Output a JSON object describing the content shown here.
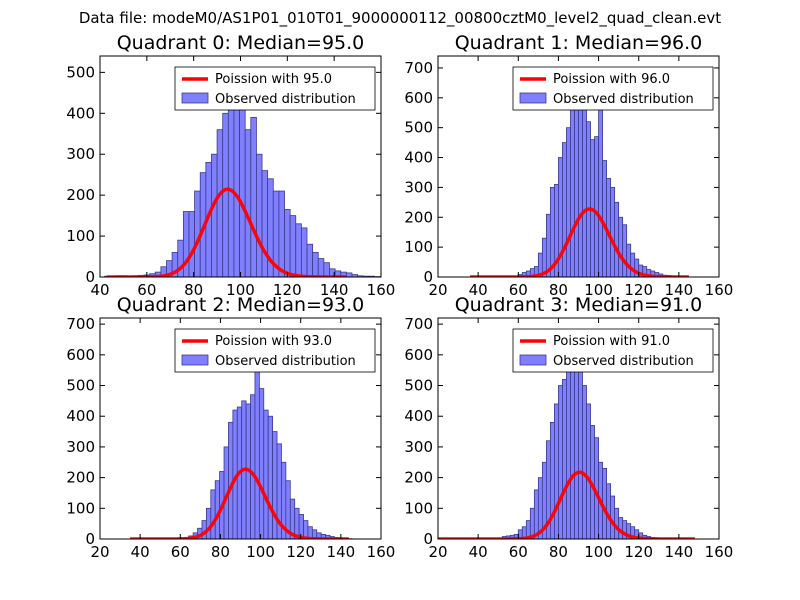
{
  "figure_title": "Data file: modeM0/AS1P01_010T01_9000000112_00800cztM0_level2_quad_clean.evt",
  "colors": {
    "bar_fill": "#8080ff",
    "bar_edge": "#3a3a8c",
    "curve": "#ff0000"
  },
  "chart_data": [
    {
      "type": "bar",
      "title": "Quadrant 0: Median=95.0",
      "legend": {
        "position": "top-right",
        "curve_label": "Poission with 95.0",
        "bars_label": "Observed distribution"
      },
      "xlim": [
        40,
        160
      ],
      "ylim": [
        0,
        540
      ],
      "xticks": [
        40,
        60,
        80,
        100,
        120,
        140,
        160
      ],
      "yticks": [
        0,
        100,
        200,
        300,
        400,
        500
      ],
      "bins": {
        "start": 42,
        "width": 2.4,
        "counts": [
          2,
          2,
          3,
          3,
          2,
          3,
          4,
          5,
          8,
          12,
          25,
          40,
          60,
          90,
          160,
          160,
          210,
          255,
          280,
          300,
          360,
          400,
          410,
          420,
          465,
          360,
          390,
          300,
          260,
          240,
          210,
          210,
          165,
          150,
          130,
          120,
          80,
          60,
          45,
          35,
          20,
          15,
          12,
          10,
          6,
          3,
          2,
          2,
          1,
          1
        ]
      },
      "poisson": {
        "mean": 95.0,
        "scale": 5240,
        "x_range": [
          43,
          145
        ]
      }
    },
    {
      "type": "bar",
      "title": "Quadrant 1: Median=96.0",
      "legend": {
        "position": "top-right",
        "curve_label": "Poission with 96.0",
        "bars_label": "Observed distribution"
      },
      "xlim": [
        20,
        160
      ],
      "ylim": [
        0,
        740
      ],
      "xticks": [
        20,
        40,
        60,
        80,
        100,
        120,
        140,
        160
      ],
      "yticks": [
        0,
        100,
        200,
        300,
        400,
        500,
        600,
        700
      ],
      "bins": {
        "start": 60,
        "width": 2.0,
        "counts": [
          8,
          15,
          20,
          28,
          35,
          80,
          130,
          210,
          300,
          310,
          400,
          450,
          500,
          570,
          600,
          680,
          640,
          520,
          460,
          470,
          600,
          390,
          330,
          300,
          250,
          200,
          175,
          110,
          80,
          60,
          40,
          35,
          25,
          20,
          15,
          10,
          6,
          5,
          3,
          2,
          1,
          1
        ]
      },
      "poisson": {
        "mean": 96.0,
        "scale": 5600,
        "x_range": [
          36,
          145
        ]
      }
    },
    {
      "type": "bar",
      "title": "Quadrant 2: Median=93.0",
      "legend": {
        "position": "top-right",
        "curve_label": "Poission with 93.0",
        "bars_label": "Observed distribution"
      },
      "xlim": [
        20,
        160
      ],
      "ylim": [
        0,
        720
      ],
      "xticks": [
        20,
        40,
        60,
        80,
        100,
        120,
        140,
        160
      ],
      "yticks": [
        0,
        100,
        200,
        300,
        400,
        500,
        600,
        700
      ],
      "bins": {
        "start": 62,
        "width": 2.2,
        "counts": [
          5,
          10,
          20,
          35,
          60,
          100,
          160,
          190,
          220,
          300,
          380,
          420,
          430,
          450,
          440,
          470,
          590,
          490,
          420,
          400,
          350,
          310,
          250,
          190,
          130,
          100,
          80,
          60,
          40,
          30,
          20,
          15,
          12,
          8,
          5,
          3,
          2,
          1
        ]
      },
      "poisson": {
        "mean": 93.0,
        "scale": 5500,
        "x_range": [
          35,
          144
        ]
      }
    },
    {
      "type": "bar",
      "title": "Quadrant 3: Median=91.0",
      "legend": {
        "position": "top-right",
        "curve_label": "Poission with 91.0",
        "bars_label": "Observed distribution"
      },
      "xlim": [
        20,
        160
      ],
      "ylim": [
        0,
        720
      ],
      "xticks": [
        20,
        40,
        60,
        80,
        100,
        120,
        140,
        160
      ],
      "yticks": [
        0,
        100,
        200,
        300,
        400,
        500,
        600,
        700
      ],
      "bins": {
        "start": 52,
        "width": 2.0,
        "counts": [
          8,
          10,
          12,
          15,
          30,
          40,
          60,
          100,
          160,
          200,
          250,
          320,
          380,
          440,
          500,
          520,
          560,
          660,
          640,
          550,
          500,
          440,
          370,
          330,
          250,
          230,
          180,
          140,
          100,
          70,
          60,
          50,
          40,
          30,
          20,
          12,
          8,
          5,
          3,
          2,
          1,
          1,
          1,
          1,
          1
        ]
      },
      "poisson": {
        "mean": 91.0,
        "scale": 5200,
        "x_range": [
          20,
          148
        ]
      }
    }
  ]
}
